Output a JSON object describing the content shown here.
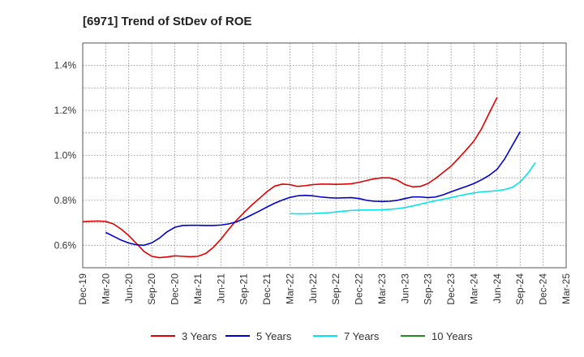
{
  "chart_data": {
    "type": "line",
    "title": "[6971]  Trend of StDev of ROE",
    "xlabel": "",
    "ylabel": "",
    "x_tick_labels": [
      "Dec-19",
      "Mar-20",
      "Jun-20",
      "Sep-20",
      "Dec-20",
      "Mar-21",
      "Jun-21",
      "Sep-21",
      "Dec-21",
      "Mar-22",
      "Jun-22",
      "Sep-22",
      "Dec-22",
      "Mar-23",
      "Jun-23",
      "Sep-23",
      "Dec-23",
      "Mar-24",
      "Jun-24",
      "Sep-24",
      "Dec-24",
      "Mar-25"
    ],
    "y_tick_labels": [
      "0.6%",
      "0.8%",
      "1.0%",
      "1.2%",
      "1.4%"
    ],
    "y_ticks": [
      0.6,
      0.8,
      1.0,
      1.2,
      1.4
    ],
    "ylim": [
      0.5,
      1.5
    ],
    "grid": true,
    "legend_position": "bottom",
    "series": [
      {
        "name": "3 Years",
        "color": "#e00000",
        "start_index": 0,
        "values": [
          0.705,
          0.707,
          0.708,
          0.706,
          0.695,
          0.672,
          0.643,
          0.608,
          0.572,
          0.551,
          0.545,
          0.548,
          0.553,
          0.551,
          0.549,
          0.551,
          0.563,
          0.59,
          0.627,
          0.67,
          0.71,
          0.745,
          0.778,
          0.808,
          0.838,
          0.863,
          0.872,
          0.87,
          0.862,
          0.865,
          0.87,
          0.872,
          0.872,
          0.871,
          0.872,
          0.874,
          0.88,
          0.888,
          0.896,
          0.9,
          0.9,
          0.89,
          0.87,
          0.86,
          0.862,
          0.875,
          0.898,
          0.925,
          0.952,
          0.988,
          1.025,
          1.065,
          1.12,
          1.19,
          1.258
        ]
      },
      {
        "name": "5 Years",
        "color": "#0000cc",
        "start_index": 3,
        "values": [
          0.657,
          0.64,
          0.623,
          0.61,
          0.602,
          0.6,
          0.611,
          0.632,
          0.66,
          0.68,
          0.688,
          0.689,
          0.689,
          0.688,
          0.688,
          0.69,
          0.695,
          0.704,
          0.718,
          0.735,
          0.752,
          0.77,
          0.787,
          0.801,
          0.813,
          0.82,
          0.822,
          0.82,
          0.815,
          0.812,
          0.81,
          0.811,
          0.812,
          0.808,
          0.8,
          0.796,
          0.795,
          0.796,
          0.8,
          0.808,
          0.815,
          0.815,
          0.812,
          0.815,
          0.825,
          0.838,
          0.85,
          0.862,
          0.875,
          0.892,
          0.912,
          0.938,
          0.985,
          1.045,
          1.105
        ]
      },
      {
        "name": "7 Years",
        "color": "#00e5ee",
        "start_index": 27,
        "values": [
          0.741,
          0.74,
          0.74,
          0.741,
          0.743,
          0.745,
          0.748,
          0.752,
          0.755,
          0.756,
          0.757,
          0.757,
          0.758,
          0.76,
          0.763,
          0.768,
          0.775,
          0.783,
          0.791,
          0.798,
          0.805,
          0.812,
          0.82,
          0.827,
          0.833,
          0.838,
          0.84,
          0.843,
          0.848,
          0.858,
          0.882,
          0.92,
          0.968
        ]
      },
      {
        "name": "10 Years",
        "color": "#228b22",
        "start_index": 0,
        "values": []
      }
    ]
  }
}
